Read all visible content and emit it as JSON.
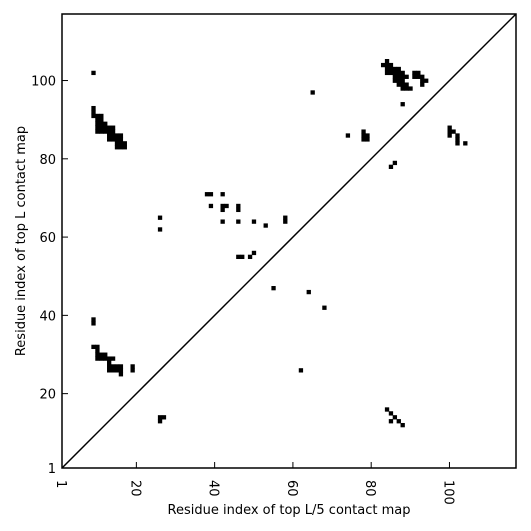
{
  "chart_data": {
    "type": "scatter",
    "title": "",
    "xlabel": "Residue index of top L/5 contact map",
    "ylabel": "Residue index of top L contact map",
    "xlim": [
      1,
      117
    ],
    "ylim": [
      1,
      117
    ],
    "x_ticks": [
      1,
      20,
      40,
      60,
      80,
      100
    ],
    "y_ticks": [
      1,
      20,
      40,
      60,
      80,
      100
    ],
    "grid": false,
    "diagonal": true,
    "marker": "square",
    "marker_color": "#000000",
    "series": [
      {
        "points": [
          [
            9,
            102
          ],
          [
            9,
            93
          ],
          [
            9,
            92
          ],
          [
            9,
            91
          ],
          [
            10,
            91
          ],
          [
            11,
            91
          ],
          [
            10,
            90
          ],
          [
            11,
            90
          ],
          [
            10,
            89
          ],
          [
            11,
            89
          ],
          [
            12,
            89
          ],
          [
            10,
            88
          ],
          [
            11,
            88
          ],
          [
            12,
            88
          ],
          [
            13,
            88
          ],
          [
            14,
            88
          ],
          [
            10,
            87
          ],
          [
            11,
            87
          ],
          [
            12,
            87
          ],
          [
            13,
            87
          ],
          [
            14,
            87
          ],
          [
            13,
            86
          ],
          [
            14,
            86
          ],
          [
            15,
            86
          ],
          [
            16,
            86
          ],
          [
            13,
            85
          ],
          [
            14,
            85
          ],
          [
            15,
            85
          ],
          [
            16,
            85
          ],
          [
            15,
            84
          ],
          [
            16,
            84
          ],
          [
            17,
            84
          ],
          [
            15,
            83
          ],
          [
            16,
            83
          ],
          [
            17,
            83
          ],
          [
            83,
            104
          ],
          [
            84,
            105
          ],
          [
            84,
            104
          ],
          [
            85,
            104
          ],
          [
            84,
            103
          ],
          [
            85,
            103
          ],
          [
            86,
            103
          ],
          [
            87,
            103
          ],
          [
            84,
            102
          ],
          [
            85,
            102
          ],
          [
            86,
            102
          ],
          [
            87,
            102
          ],
          [
            88,
            102
          ],
          [
            86,
            101
          ],
          [
            87,
            101
          ],
          [
            88,
            101
          ],
          [
            89,
            101
          ],
          [
            86,
            100
          ],
          [
            87,
            100
          ],
          [
            88,
            100
          ],
          [
            87,
            99
          ],
          [
            88,
            99
          ],
          [
            89,
            99
          ],
          [
            88,
            98
          ],
          [
            89,
            98
          ],
          [
            90,
            98
          ],
          [
            88,
            94
          ],
          [
            91,
            102
          ],
          [
            92,
            102
          ],
          [
            91,
            101
          ],
          [
            92,
            101
          ],
          [
            93,
            101
          ],
          [
            93,
            100
          ],
          [
            94,
            100
          ],
          [
            93,
            99
          ],
          [
            65,
            97
          ],
          [
            74,
            86
          ],
          [
            78,
            87
          ],
          [
            78,
            86
          ],
          [
            79,
            86
          ],
          [
            78,
            85
          ],
          [
            79,
            85
          ],
          [
            100,
            88
          ],
          [
            100,
            87
          ],
          [
            101,
            87
          ],
          [
            100,
            86
          ],
          [
            102,
            86
          ],
          [
            102,
            85
          ],
          [
            102,
            84
          ],
          [
            104,
            84
          ],
          [
            85,
            78
          ],
          [
            86,
            79
          ],
          [
            38,
            71
          ],
          [
            39,
            71
          ],
          [
            42,
            71
          ],
          [
            39,
            68
          ],
          [
            42,
            68
          ],
          [
            43,
            68
          ],
          [
            42,
            67
          ],
          [
            46,
            68
          ],
          [
            46,
            67
          ],
          [
            26,
            65
          ],
          [
            26,
            62
          ],
          [
            42,
            64
          ],
          [
            46,
            64
          ],
          [
            50,
            64
          ],
          [
            53,
            63
          ],
          [
            58,
            65
          ],
          [
            58,
            64
          ],
          [
            46,
            55
          ],
          [
            47,
            55
          ],
          [
            49,
            55
          ],
          [
            50,
            56
          ],
          [
            55,
            47
          ],
          [
            64,
            46
          ],
          [
            68,
            42
          ],
          [
            62,
            26
          ],
          [
            9,
            39
          ],
          [
            9,
            38
          ],
          [
            9,
            32
          ],
          [
            10,
            32
          ],
          [
            10,
            31
          ],
          [
            10,
            30
          ],
          [
            11,
            30
          ],
          [
            12,
            30
          ],
          [
            10,
            29
          ],
          [
            11,
            29
          ],
          [
            12,
            29
          ],
          [
            13,
            29
          ],
          [
            14,
            29
          ],
          [
            13,
            28
          ],
          [
            13,
            27
          ],
          [
            14,
            27
          ],
          [
            15,
            27
          ],
          [
            16,
            27
          ],
          [
            13,
            26
          ],
          [
            14,
            26
          ],
          [
            15,
            26
          ],
          [
            16,
            26
          ],
          [
            19,
            27
          ],
          [
            19,
            26
          ],
          [
            16,
            25
          ],
          [
            26,
            14
          ],
          [
            27,
            14
          ],
          [
            26,
            13
          ],
          [
            84,
            16
          ],
          [
            85,
            15
          ],
          [
            86,
            14
          ],
          [
            85,
            13
          ],
          [
            87,
            13
          ],
          [
            88,
            12
          ]
        ]
      }
    ]
  }
}
